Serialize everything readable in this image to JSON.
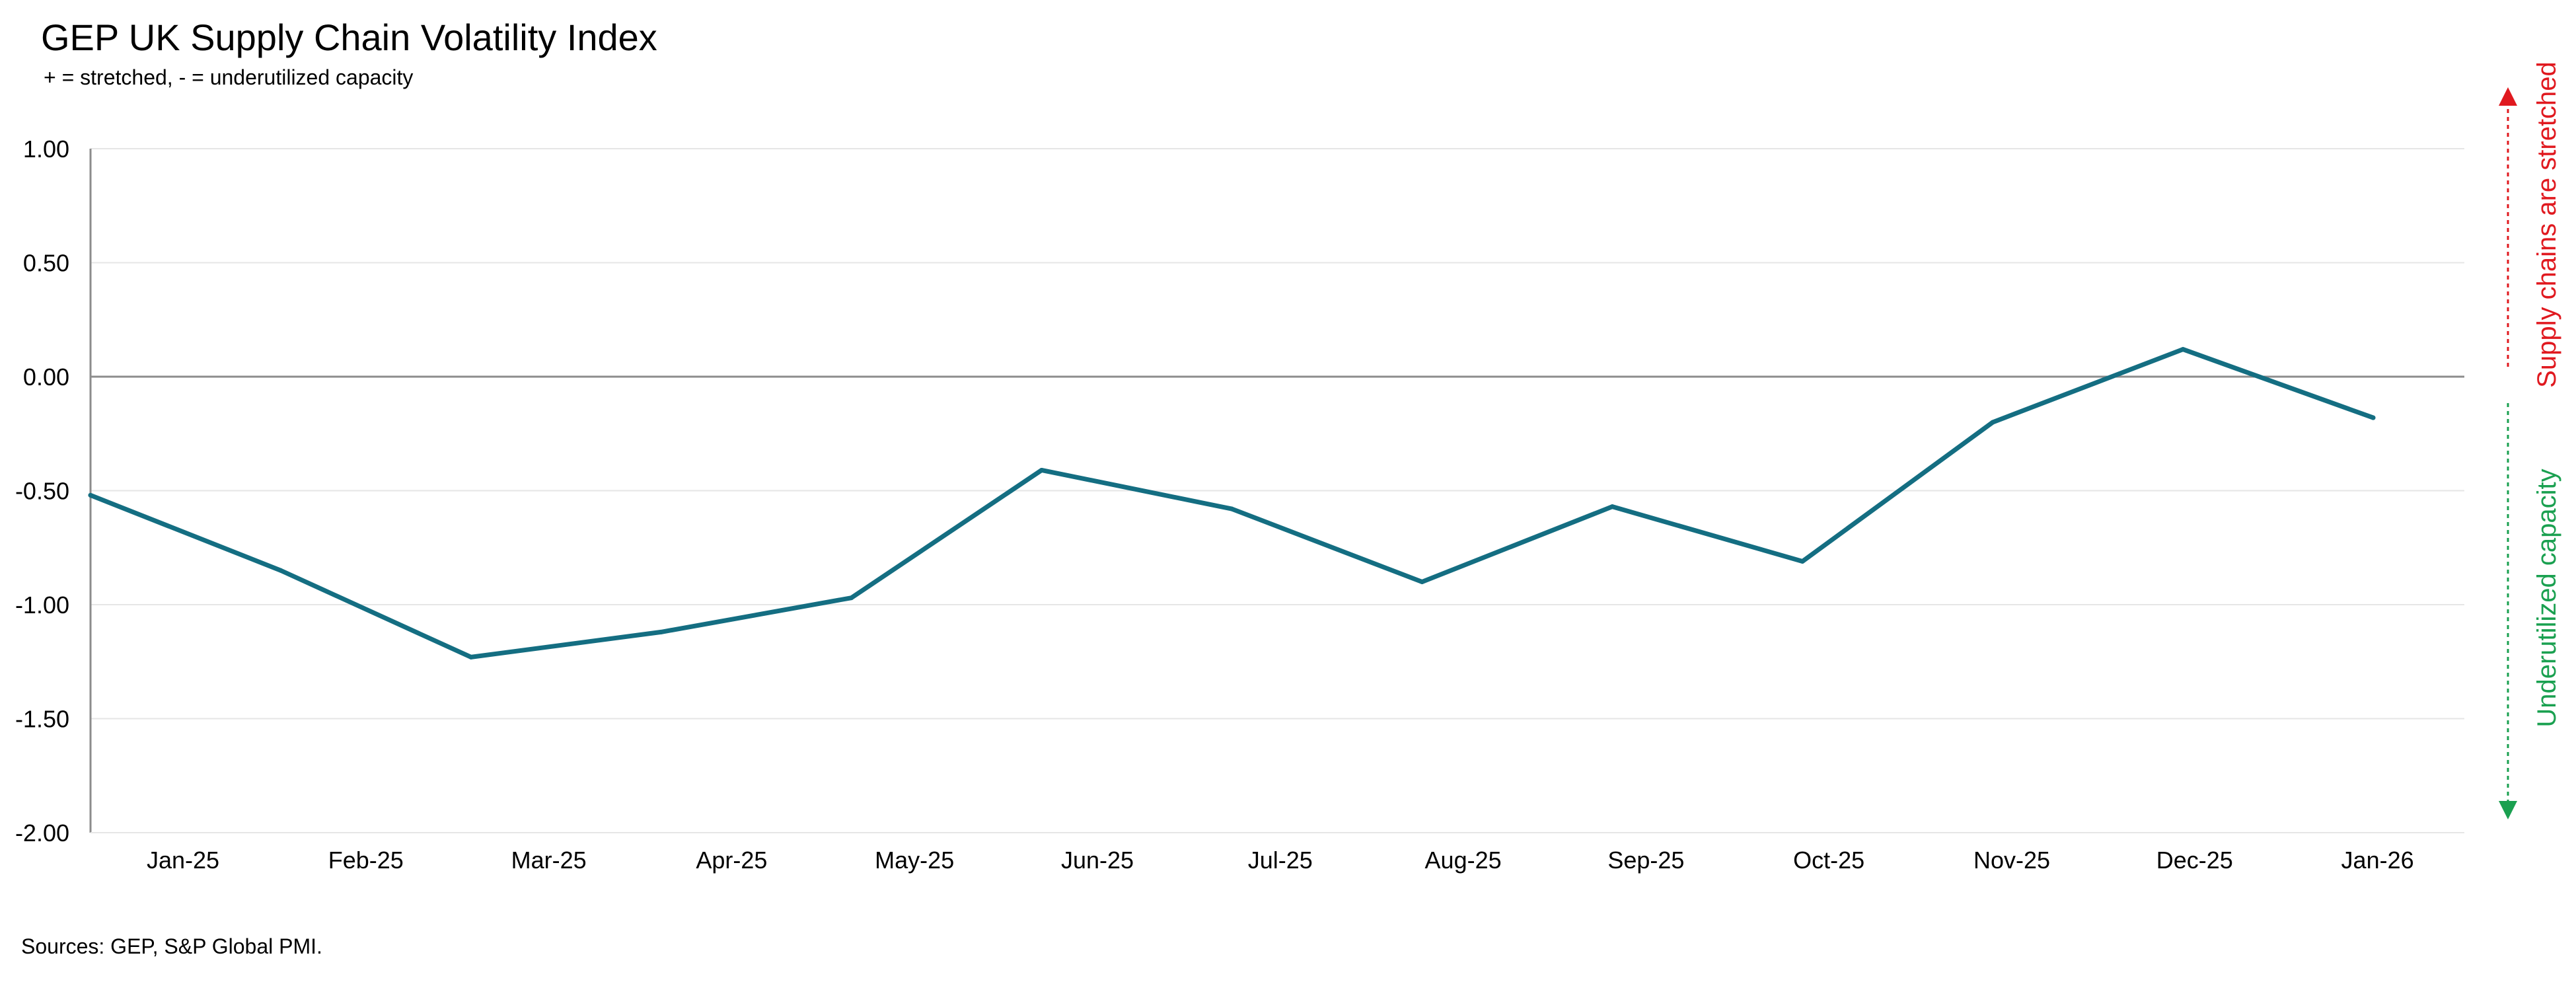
{
  "title": "GEP UK Supply Chain Volatility Index",
  "subtitle": "+ = stretched, - = underutilized capacity",
  "source": "Sources: GEP, S&P Global PMI.",
  "annotations": {
    "up_label": "Supply chains are stretched",
    "up_color": "#e0191f",
    "down_label": "Underutilized capacity",
    "down_color": "#1aa050"
  },
  "colors": {
    "line": "#146e82",
    "zero_line": "#8c8c8c",
    "grid": "#e6e6e6",
    "axis": "#8c8c8c"
  },
  "chart_data": {
    "type": "line",
    "title": "GEP UK Supply Chain Volatility Index",
    "subtitle": "+ = stretched, - = underutilized capacity",
    "xlabel": "",
    "ylabel": "",
    "categories": [
      "Jan-25",
      "Feb-25",
      "Mar-25",
      "Apr-25",
      "May-25",
      "Jun-25",
      "Jul-25",
      "Aug-25",
      "Sep-25",
      "Oct-25",
      "Nov-25",
      "Dec-25",
      "Jan-26"
    ],
    "series": [
      {
        "values": [
          -0.52,
          -0.85,
          -1.23,
          -1.12,
          -0.97,
          -0.41,
          -0.58,
          -0.9,
          -0.57,
          -0.81,
          -0.2,
          0.12,
          -0.18
        ]
      }
    ],
    "ylim": [
      -2.0,
      1.0
    ],
    "yticks": [
      1.0,
      0.5,
      0.0,
      -0.5,
      -1.0,
      -1.5,
      -2.0
    ],
    "ytick_labels": [
      "1.00",
      "0.50",
      "0.00",
      "-0.50",
      "-1.00",
      "-1.50",
      "-2.00"
    ],
    "grid": true
  }
}
